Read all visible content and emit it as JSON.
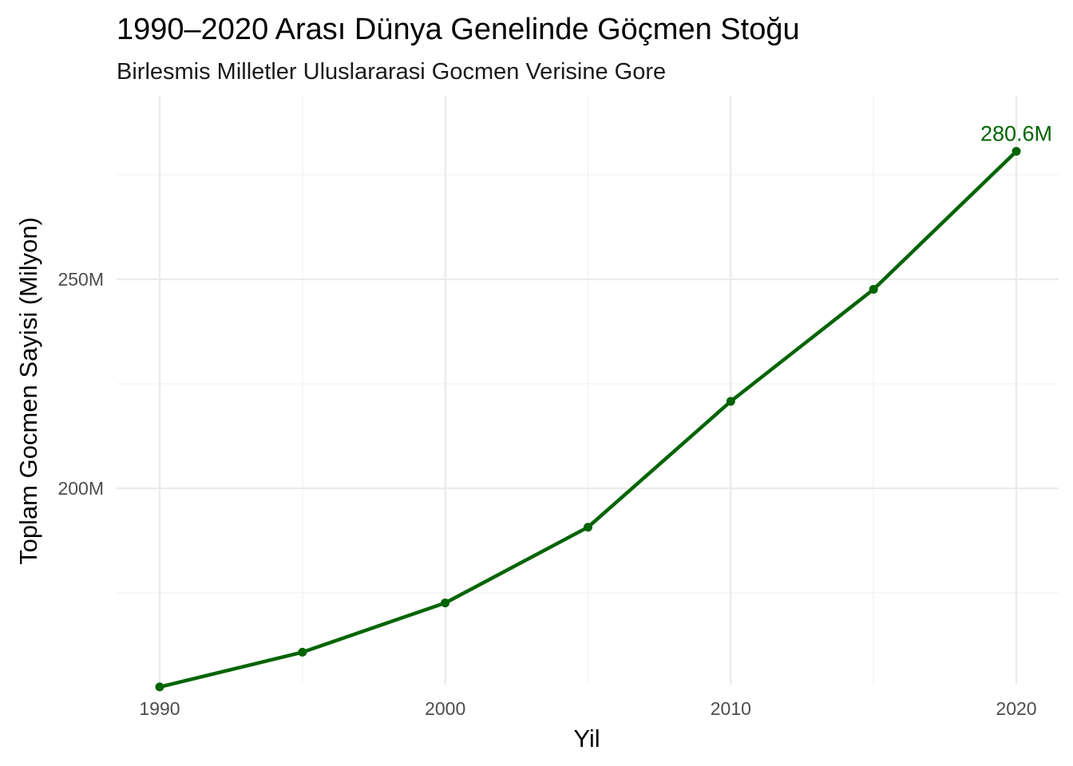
{
  "chart_data": {
    "type": "line",
    "title": "1990–2020 Arası Dünya Genelinde Göçmen Stoğu",
    "subtitle": "Birlesmis Milletler Uluslararasi Gocmen Verisine Gore",
    "xlabel": "Yil",
    "ylabel": "Toplam Gocmen Sayisi (Milyon)",
    "x": [
      1990,
      1995,
      2000,
      2005,
      2010,
      2015,
      2020
    ],
    "series": [
      {
        "values": [
          152.5,
          160.8,
          172.6,
          190.7,
          220.8,
          247.6,
          280.6
        ]
      }
    ],
    "xlim": [
      1989.2,
      1990.0,
      2021.5
    ],
    "ylim": [
      152.5,
      280.6
    ],
    "x_ticks": [
      {
        "value": 1990,
        "label": "1990"
      },
      {
        "value": 2000,
        "label": "2000"
      },
      {
        "value": 2010,
        "label": "2010"
      },
      {
        "value": 2020,
        "label": "2020"
      }
    ],
    "y_ticks": [
      {
        "value": 200,
        "label": "200M"
      },
      {
        "value": 250,
        "label": "250M"
      }
    ],
    "annotations": [
      {
        "x": 2020,
        "y": 280.6,
        "label": "280.6M"
      }
    ],
    "grid": true,
    "legend": "none",
    "colors": {
      "line": "#006400",
      "label": "#006400"
    }
  }
}
